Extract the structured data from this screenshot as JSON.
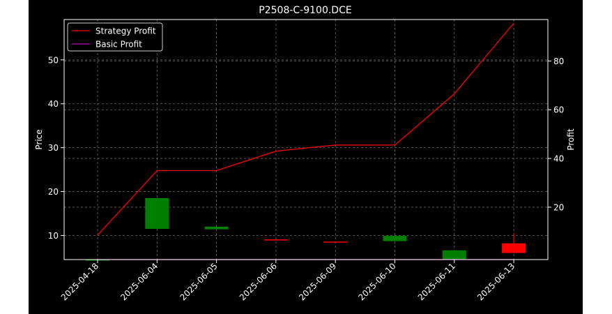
{
  "chart_data": {
    "type": "candlestick",
    "title": "P2508-C-9100.DCE",
    "ylabel_left": "Price",
    "ylabel_right": "Profit",
    "categories": [
      "2025-04-18",
      "2025-06-04",
      "2025-06-05",
      "2025-06-06",
      "2025-06-09",
      "2025-06-10",
      "2025-06-11",
      "2025-06-13"
    ],
    "left_ylim": [
      4.5,
      59.2
    ],
    "right_ylim": [
      -1.5,
      97
    ],
    "left_yticks": [
      10,
      20,
      30,
      40,
      50
    ],
    "right_yticks": [
      20,
      40,
      60,
      80
    ],
    "candles": [
      {
        "open": 4.5,
        "high": 4.5,
        "low": 4.5,
        "close": 4.5,
        "color": "#008000"
      },
      {
        "open": 18.5,
        "high": 18.5,
        "low": 11.5,
        "close": 11.5,
        "color": "#008000"
      },
      {
        "open": 12.0,
        "high": 12.0,
        "low": 11.4,
        "close": 11.4,
        "color": "#008000"
      },
      {
        "open": 9.1,
        "high": 9.1,
        "low": 8.9,
        "close": 8.9,
        "color": "#ff0000"
      },
      {
        "open": 8.6,
        "high": 8.6,
        "low": 8.4,
        "close": 8.4,
        "color": "#ff0000"
      },
      {
        "open": 9.9,
        "high": 9.9,
        "low": 8.7,
        "close": 8.7,
        "color": "#008000"
      },
      {
        "open": 6.6,
        "high": 6.6,
        "low": 4.6,
        "close": 4.6,
        "color": "#008000"
      },
      {
        "open": 6.0,
        "high": 10.5,
        "low": 6.0,
        "close": 8.2,
        "color": "#ff0000"
      }
    ],
    "series": [
      {
        "name": "Strategy Profit",
        "color": "#ff0000",
        "values": [
          8.5,
          35,
          35,
          43,
          45.5,
          45.5,
          66.5,
          95.5
        ]
      },
      {
        "name": "Basic Profit",
        "color": "#bf00bf",
        "values": [
          -1.5,
          -1.5,
          -1.5,
          -1.5,
          -1.5,
          -1.5,
          -1.5,
          -1.5
        ]
      }
    ],
    "legend_position": "top-left",
    "grid": true,
    "background": "#000000"
  }
}
